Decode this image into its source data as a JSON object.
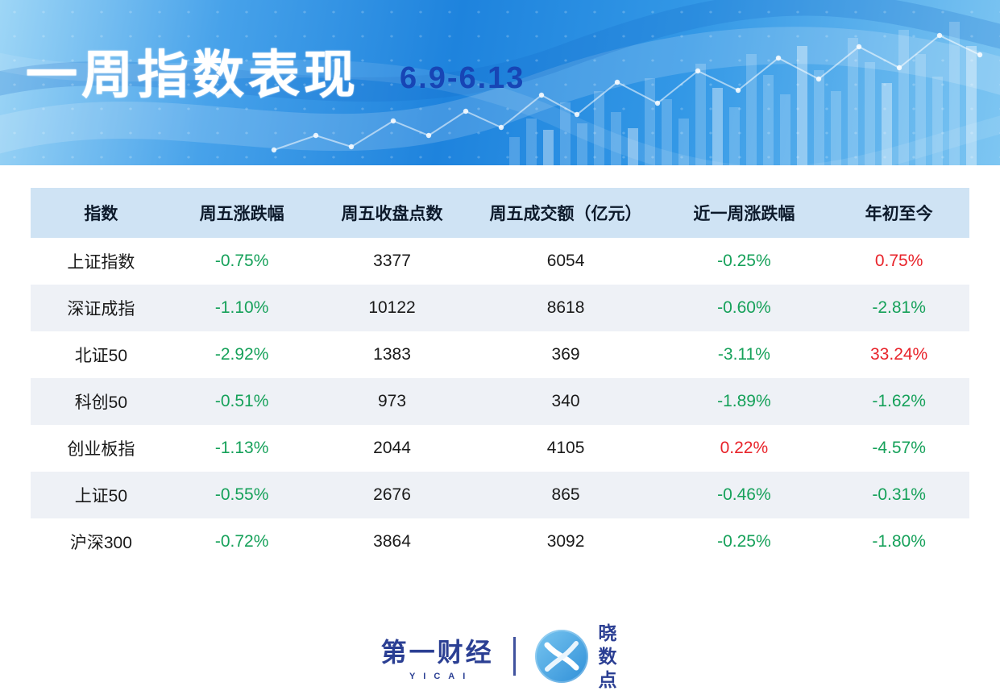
{
  "header": {
    "title": "一周指数表现",
    "date_range": "6.9-6.13"
  },
  "chart_data": {
    "type": "table",
    "title": "一周指数表现",
    "subtitle": "6.9-6.13",
    "columns": [
      "指数",
      "周五涨跌幅",
      "周五收盘点数",
      "周五成交额（亿元）",
      "近一周涨跌幅",
      "年初至今"
    ],
    "rows": [
      [
        "上证指数",
        "-0.75%",
        "3377",
        "6054",
        "-0.25%",
        "0.75%"
      ],
      [
        "深证成指",
        "-1.10%",
        "10122",
        "8618",
        "-0.60%",
        "-2.81%"
      ],
      [
        "北证50",
        "-2.92%",
        "1383",
        "369",
        "-3.11%",
        "33.24%"
      ],
      [
        "科创50",
        "-0.51%",
        "973",
        "340",
        "-1.89%",
        "-1.62%"
      ],
      [
        "创业板指",
        "-1.13%",
        "2044",
        "4105",
        "0.22%",
        "-4.57%"
      ],
      [
        "上证50",
        "-0.55%",
        "2676",
        "865",
        "-0.46%",
        "-0.31%"
      ],
      [
        "沪深300",
        "-0.72%",
        "3864",
        "3092",
        "-0.25%",
        "-1.80%"
      ]
    ],
    "value_color_rule": "negative values green, positive values red"
  },
  "footer": {
    "yicai_name": "第一财经",
    "yicai_en": "YICAI",
    "xiaoshudian_name": "晓数点"
  },
  "colors": {
    "date_blue": "#1745b5",
    "header_row_bg": "#cfe3f4",
    "stripe_bg": "#eef1f6",
    "positive_red": "#e8232a",
    "negative_green": "#16a15a",
    "logo_navy": "#2b3f93"
  }
}
